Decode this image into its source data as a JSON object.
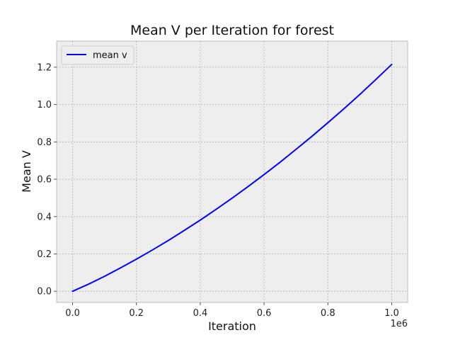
{
  "chart_data": {
    "type": "line",
    "title": "Mean V per Iteration for forest",
    "xlabel": "Iteration",
    "ylabel": "Mean V",
    "x_offset_text": "1e6",
    "xlim": [
      -0.05,
      1.05
    ],
    "ylim": [
      -0.06,
      1.34
    ],
    "x_ticks": [
      0.0,
      0.2,
      0.4,
      0.6,
      0.8,
      1.0
    ],
    "x_tick_labels": [
      "0.0",
      "0.2",
      "0.4",
      "0.6",
      "0.8",
      "1.0"
    ],
    "y_ticks": [
      0.0,
      0.2,
      0.4,
      0.6,
      0.8,
      1.0,
      1.2
    ],
    "y_tick_labels": [
      "0.0",
      "0.2",
      "0.4",
      "0.6",
      "0.8",
      "1.0",
      "1.2"
    ],
    "grid": true,
    "legend_position": "top-left",
    "series": [
      {
        "name": "mean v",
        "color": "#0000ff",
        "x": [
          0.0,
          0.05,
          0.1,
          0.15,
          0.2,
          0.25,
          0.3,
          0.35,
          0.4,
          0.45,
          0.5,
          0.55,
          0.6,
          0.65,
          0.7,
          0.75,
          0.8,
          0.85,
          0.9,
          0.95,
          1.0
        ],
        "y": [
          0.0,
          0.038,
          0.08,
          0.125,
          0.172,
          0.221,
          0.272,
          0.326,
          0.381,
          0.439,
          0.499,
          0.561,
          0.625,
          0.691,
          0.76,
          0.83,
          0.903,
          0.977,
          1.054,
          1.134,
          1.215
        ]
      }
    ]
  }
}
